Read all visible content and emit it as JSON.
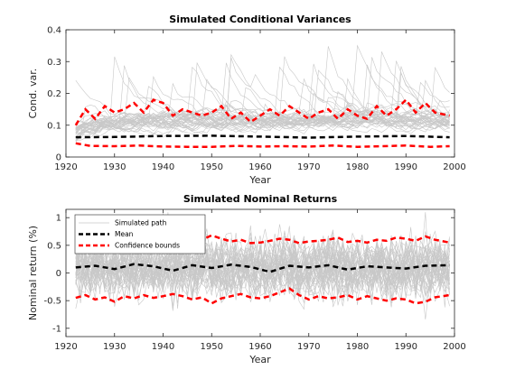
{
  "chart_data": [
    {
      "type": "line",
      "title": "Simulated Conditional Variances",
      "xlabel": "Year",
      "ylabel": "Cond. var.",
      "xlim": [
        1920,
        2000
      ],
      "ylim": [
        0,
        0.4
      ],
      "xticks": [
        "1920",
        "1930",
        "1940",
        "1950",
        "1960",
        "1970",
        "1980",
        "1990",
        "2000"
      ],
      "yticks": [
        "0",
        "0.1",
        "0.2",
        "0.3",
        "0.4"
      ],
      "x_range": [
        1922,
        1999
      ],
      "series": [
        {
          "name": "Mean",
          "color": "#000000",
          "style": "dashed",
          "x": [
            1922,
            1930,
            1940,
            1950,
            1960,
            1970,
            1980,
            1990,
            1999
          ],
          "values": [
            0.062,
            0.063,
            0.066,
            0.067,
            0.064,
            0.061,
            0.064,
            0.066,
            0.062
          ]
        },
        {
          "name": "Confidence bounds (upper)",
          "color": "#ff0000",
          "style": "dashed",
          "x": [
            1922,
            1924,
            1926,
            1928,
            1930,
            1932,
            1934,
            1936,
            1938,
            1940,
            1942,
            1944,
            1946,
            1948,
            1950,
            1952,
            1954,
            1956,
            1958,
            1960,
            1962,
            1964,
            1966,
            1968,
            1970,
            1972,
            1974,
            1976,
            1978,
            1980,
            1982,
            1984,
            1986,
            1988,
            1990,
            1992,
            1994,
            1996,
            1999
          ],
          "values": [
            0.1,
            0.15,
            0.12,
            0.16,
            0.14,
            0.15,
            0.17,
            0.14,
            0.18,
            0.17,
            0.13,
            0.15,
            0.14,
            0.13,
            0.14,
            0.16,
            0.12,
            0.14,
            0.11,
            0.13,
            0.15,
            0.13,
            0.16,
            0.14,
            0.12,
            0.14,
            0.15,
            0.12,
            0.15,
            0.13,
            0.12,
            0.16,
            0.13,
            0.15,
            0.18,
            0.14,
            0.17,
            0.14,
            0.13
          ]
        },
        {
          "name": "Confidence bounds (lower)",
          "color": "#ff0000",
          "style": "dashed",
          "x": [
            1922,
            1925,
            1930,
            1935,
            1940,
            1945,
            1950,
            1955,
            1960,
            1965,
            1970,
            1975,
            1980,
            1985,
            1990,
            1995,
            1999
          ],
          "values": [
            0.043,
            0.035,
            0.034,
            0.036,
            0.033,
            0.032,
            0.032,
            0.035,
            0.033,
            0.034,
            0.033,
            0.036,
            0.032,
            0.034,
            0.036,
            0.032,
            0.034
          ]
        }
      ],
      "simulated_paths": {
        "count": 40,
        "color": "#c8c8c8",
        "typical": 0.08,
        "max_peak": 0.35
      }
    },
    {
      "type": "line",
      "title": "Simulated Nominal Returns",
      "xlabel": "Year",
      "ylabel": "Nominal return (%)",
      "xlim": [
        1920,
        2000
      ],
      "ylim": [
        -1.15,
        1.15
      ],
      "xticks": [
        "1920",
        "1930",
        "1940",
        "1950",
        "1960",
        "1970",
        "1980",
        "1990",
        "2000"
      ],
      "yticks": [
        "-1",
        "-0.5",
        "0",
        "0.5",
        "1"
      ],
      "x_range": [
        1922,
        1999
      ],
      "series": [
        {
          "name": "Mean",
          "color": "#000000",
          "style": "dashed",
          "x": [
            1922,
            1926,
            1930,
            1934,
            1938,
            1942,
            1946,
            1950,
            1954,
            1958,
            1962,
            1966,
            1970,
            1974,
            1978,
            1982,
            1986,
            1990,
            1994,
            1999
          ],
          "values": [
            0.1,
            0.13,
            0.07,
            0.16,
            0.12,
            0.04,
            0.14,
            0.09,
            0.15,
            0.11,
            0.02,
            0.13,
            0.1,
            0.14,
            0.06,
            0.12,
            0.1,
            0.08,
            0.13,
            0.14
          ]
        },
        {
          "name": "Confidence bounds (upper)",
          "color": "#ff0000",
          "style": "dashed",
          "x": [
            1922,
            1924,
            1926,
            1928,
            1930,
            1932,
            1934,
            1936,
            1938,
            1940,
            1942,
            1944,
            1946,
            1948,
            1950,
            1952,
            1954,
            1956,
            1958,
            1960,
            1962,
            1964,
            1966,
            1968,
            1970,
            1972,
            1974,
            1976,
            1978,
            1980,
            1982,
            1984,
            1986,
            1988,
            1990,
            1992,
            1994,
            1996,
            1999
          ],
          "values": [
            0.5,
            0.56,
            0.58,
            0.52,
            0.55,
            0.6,
            0.54,
            0.58,
            0.6,
            0.55,
            0.52,
            0.58,
            0.54,
            0.6,
            0.68,
            0.62,
            0.57,
            0.6,
            0.54,
            0.55,
            0.58,
            0.62,
            0.6,
            0.54,
            0.57,
            0.58,
            0.6,
            0.64,
            0.56,
            0.58,
            0.55,
            0.6,
            0.58,
            0.64,
            0.62,
            0.58,
            0.66,
            0.6,
            0.55
          ]
        },
        {
          "name": "Confidence bounds (lower)",
          "color": "#ff0000",
          "style": "dashed",
          "x": [
            1922,
            1924,
            1926,
            1928,
            1930,
            1932,
            1934,
            1936,
            1938,
            1940,
            1942,
            1944,
            1946,
            1948,
            1950,
            1952,
            1954,
            1956,
            1958,
            1960,
            1962,
            1964,
            1966,
            1968,
            1970,
            1972,
            1974,
            1976,
            1978,
            1980,
            1982,
            1984,
            1986,
            1988,
            1990,
            1992,
            1994,
            1996,
            1999
          ],
          "values": [
            -0.45,
            -0.4,
            -0.48,
            -0.44,
            -0.52,
            -0.42,
            -0.46,
            -0.4,
            -0.45,
            -0.42,
            -0.38,
            -0.42,
            -0.48,
            -0.44,
            -0.55,
            -0.46,
            -0.42,
            -0.38,
            -0.44,
            -0.46,
            -0.42,
            -0.35,
            -0.28,
            -0.4,
            -0.48,
            -0.42,
            -0.46,
            -0.44,
            -0.4,
            -0.48,
            -0.42,
            -0.46,
            -0.5,
            -0.46,
            -0.48,
            -0.55,
            -0.52,
            -0.44,
            -0.4
          ]
        }
      ],
      "simulated_paths": {
        "count": 40,
        "color": "#c8c8c8",
        "typical": 0.3,
        "max_abs": 1.1
      },
      "legend": {
        "placement": "top-left",
        "entries": [
          {
            "label": "Simulated path",
            "color": "#c8c8c8",
            "style": "solid"
          },
          {
            "label": "Mean",
            "color": "#000000",
            "style": "dashed"
          },
          {
            "label": "Confidence bounds",
            "color": "#ff0000",
            "style": "dashed"
          }
        ]
      }
    }
  ]
}
